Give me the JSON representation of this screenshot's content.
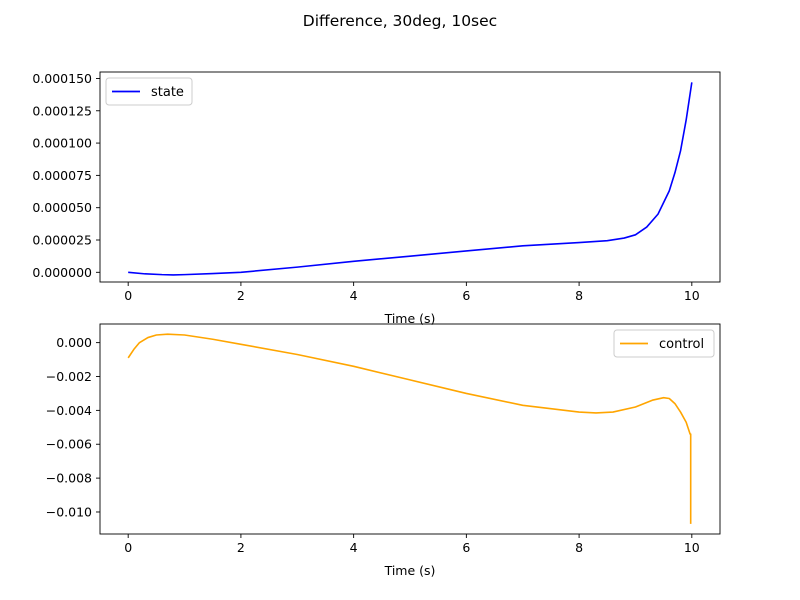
{
  "figure": {
    "title": "Difference, 30deg, 10sec",
    "background": "#ffffff"
  },
  "chart_data": [
    {
      "type": "line",
      "xlabel": "Time (s)",
      "ylabel": "",
      "xlim": [
        -0.5,
        10.5
      ],
      "ylim": [
        -7.5e-06,
        0.000155
      ],
      "x_ticks": [
        0,
        2,
        4,
        6,
        8,
        10
      ],
      "x_tick_labels": [
        "0",
        "2",
        "4",
        "6",
        "8",
        "10"
      ],
      "y_ticks": [
        0,
        2.5e-05,
        5e-05,
        7.5e-05,
        0.0001,
        0.000125,
        0.00015
      ],
      "y_tick_labels": [
        "0.000000",
        "0.000025",
        "0.000050",
        "0.000075",
        "0.000100",
        "0.000125",
        "0.000150"
      ],
      "grid": false,
      "legend_position": "top-left",
      "series": [
        {
          "name": "state",
          "color": "#0000ff",
          "x": [
            0,
            0.3,
            0.6,
            0.8,
            1.0,
            1.5,
            2.0,
            3.0,
            4.0,
            5.0,
            6.0,
            7.0,
            8.0,
            8.5,
            8.8,
            9.0,
            9.2,
            9.4,
            9.6,
            9.7,
            9.8,
            9.9,
            10.0
          ],
          "y": [
            0,
            -1.2e-06,
            -1.8e-06,
            -2e-06,
            -1.8e-06,
            -1e-06,
            0.0,
            4e-06,
            8.5e-06,
            1.25e-05,
            1.65e-05,
            2.05e-05,
            2.3e-05,
            2.45e-05,
            2.65e-05,
            2.9e-05,
            3.5e-05,
            4.5e-05,
            6.3e-05,
            7.7e-05,
            9.4e-05,
            0.000118,
            0.000147
          ]
        }
      ]
    },
    {
      "type": "line",
      "xlabel": "Time (s)",
      "ylabel": "",
      "xlim": [
        -0.5,
        10.5
      ],
      "ylim": [
        -0.0113,
        0.0011
      ],
      "x_ticks": [
        0,
        2,
        4,
        6,
        8,
        10
      ],
      "x_tick_labels": [
        "0",
        "2",
        "4",
        "6",
        "8",
        "10"
      ],
      "y_ticks": [
        0,
        -0.002,
        -0.004,
        -0.006,
        -0.008,
        -0.01
      ],
      "y_tick_labels": [
        "0.000",
        "−0.002",
        "−0.004",
        "−0.006",
        "−0.008",
        "−0.010"
      ],
      "grid": false,
      "legend_position": "top-right",
      "series": [
        {
          "name": "control",
          "color": "#ffa500",
          "x": [
            0,
            0.1,
            0.2,
            0.35,
            0.5,
            0.7,
            1.0,
            1.5,
            2.0,
            3.0,
            4.0,
            5.0,
            6.0,
            7.0,
            8.0,
            8.3,
            8.6,
            9.0,
            9.3,
            9.5,
            9.6,
            9.7,
            9.8,
            9.9,
            9.97,
            9.98,
            9.98
          ],
          "y": [
            -0.0009,
            -0.0004,
            0.0,
            0.0003,
            0.00045,
            0.0005,
            0.00045,
            0.0002,
            -0.0001,
            -0.0007,
            -0.0014,
            -0.0022,
            -0.003,
            -0.0037,
            -0.0041,
            -0.00415,
            -0.0041,
            -0.0038,
            -0.0034,
            -0.00325,
            -0.0033,
            -0.0036,
            -0.0041,
            -0.0047,
            -0.0054,
            -0.0054,
            -0.0107
          ]
        }
      ]
    }
  ]
}
